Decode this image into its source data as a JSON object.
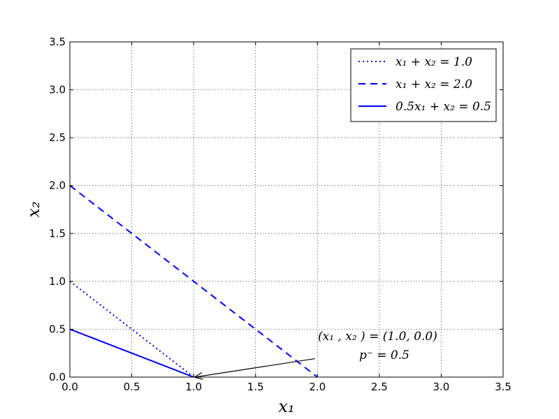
{
  "chart_data": {
    "type": "line",
    "title": "",
    "xlabel": "x₁",
    "ylabel": "x₂",
    "xlim": [
      0.0,
      3.5
    ],
    "ylim": [
      0.0,
      3.5
    ],
    "grid": true,
    "grid_style": "dotted",
    "xticks": [
      0.0,
      0.5,
      1.0,
      1.5,
      2.0,
      2.5,
      3.0,
      3.5
    ],
    "yticks": [
      0.0,
      0.5,
      1.0,
      1.5,
      2.0,
      2.5,
      3.0,
      3.5
    ],
    "xtick_labels": [
      "0.0",
      "0.5",
      "1.0",
      "1.5",
      "2.0",
      "2.5",
      "3.0",
      "3.5"
    ],
    "ytick_labels": [
      "0.0",
      "0.5",
      "1.0",
      "1.5",
      "2.0",
      "2.5",
      "3.0",
      "3.5"
    ],
    "legend_position": "top-right",
    "series": [
      {
        "name": "x₁ + x₂ = 1.0",
        "style": "dotted",
        "color": "#0000ff",
        "x": [
          0.0,
          1.0
        ],
        "y": [
          1.0,
          0.0
        ]
      },
      {
        "name": "x₁ + x₂ = 2.0",
        "style": "dashed",
        "color": "#0000ff",
        "x": [
          0.0,
          2.0
        ],
        "y": [
          2.0,
          0.0
        ]
      },
      {
        "name": "0.5x₁ + x₂ = 0.5",
        "style": "solid",
        "color": "#0000ff",
        "x": [
          0.0,
          1.0
        ],
        "y": [
          0.5,
          0.0
        ]
      }
    ],
    "annotation": {
      "line1": "(x₁ , x₂ ) = (1.0, 0.0)",
      "line2": "p⁻ = 0.5",
      "point": [
        1.0,
        0.0
      ],
      "text_at": [
        1.98,
        0.2
      ]
    }
  }
}
